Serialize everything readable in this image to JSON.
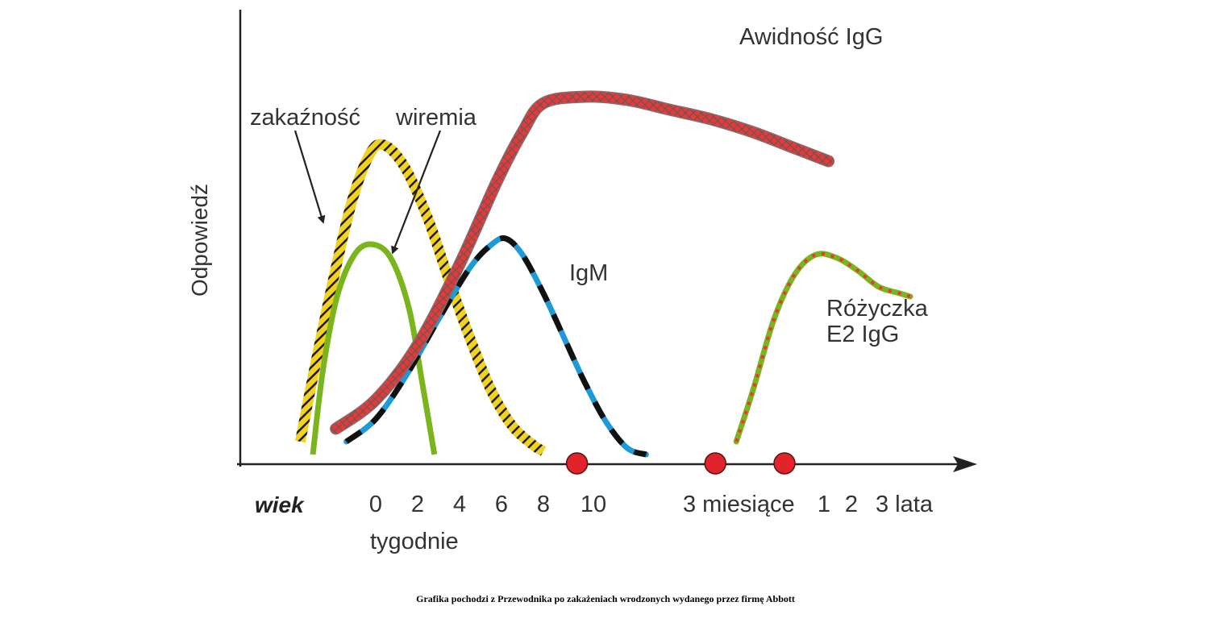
{
  "chart_data": {
    "type": "line",
    "title": "",
    "ylabel": "Odpowiedź",
    "x_axis": {
      "title": "wiek",
      "ticks": [
        "0",
        "2",
        "4",
        "6",
        "8",
        "10",
        "3 miesiące",
        "1",
        "2",
        "3 lata"
      ],
      "group_label": "tygodnie"
    },
    "markers": [
      {
        "x": 9.6
      },
      {
        "x": 16.2
      },
      {
        "x": 19.5
      }
    ],
    "series": [
      {
        "name": "zakaźność",
        "color": "#f2d21e",
        "stroke_color": "#222222",
        "pattern": "hatched",
        "annotation_arrow": true,
        "points": [
          [
            -3.6,
            0.07
          ],
          [
            -3.0,
            0.27
          ],
          [
            -2.2,
            0.52
          ],
          [
            -1.2,
            0.8
          ],
          [
            -0.3,
            0.96
          ],
          [
            0.4,
            0.99
          ],
          [
            1.4,
            0.92
          ],
          [
            2.5,
            0.76
          ],
          [
            3.5,
            0.57
          ],
          [
            4.5,
            0.39
          ],
          [
            5.5,
            0.23
          ],
          [
            6.5,
            0.12
          ],
          [
            7.5,
            0.06
          ],
          [
            8.0,
            0.04
          ]
        ]
      },
      {
        "name": "wiremia",
        "color": "#7ab51d",
        "pattern": "solid",
        "annotation_arrow": true,
        "points": [
          [
            -3.0,
            0.03
          ],
          [
            -2.5,
            0.3
          ],
          [
            -1.8,
            0.53
          ],
          [
            -0.9,
            0.66
          ],
          [
            0.0,
            0.68
          ],
          [
            0.8,
            0.63
          ],
          [
            1.6,
            0.48
          ],
          [
            2.2,
            0.26
          ],
          [
            2.8,
            0.03
          ]
        ]
      },
      {
        "name": "IgM",
        "color": "#1e9ad6",
        "stroke_color": "#111111",
        "pattern": "dashed",
        "points": [
          [
            -1.4,
            0.07
          ],
          [
            0.0,
            0.14
          ],
          [
            1.5,
            0.28
          ],
          [
            3.0,
            0.45
          ],
          [
            4.5,
            0.61
          ],
          [
            5.5,
            0.68
          ],
          [
            6.2,
            0.7
          ],
          [
            7.0,
            0.65
          ],
          [
            8.0,
            0.53
          ],
          [
            9.0,
            0.39
          ],
          [
            10.0,
            0.25
          ],
          [
            11.0,
            0.13
          ],
          [
            12.0,
            0.05
          ],
          [
            12.9,
            0.03
          ]
        ]
      },
      {
        "name": "Awidność IgG",
        "color": "#e63a3a",
        "stroke_color": "#555555",
        "pattern": "cross-hatched",
        "points": [
          [
            -1.9,
            0.11
          ],
          [
            0.0,
            0.2
          ],
          [
            2.0,
            0.37
          ],
          [
            4.0,
            0.62
          ],
          [
            5.8,
            0.88
          ],
          [
            7.0,
            1.03
          ],
          [
            8.0,
            1.12
          ],
          [
            10.0,
            1.14
          ],
          [
            12.0,
            1.13
          ],
          [
            14.0,
            1.1
          ],
          [
            16.0,
            1.07
          ],
          [
            18.0,
            1.03
          ],
          [
            20.0,
            0.98
          ],
          [
            21.6,
            0.94
          ]
        ]
      },
      {
        "name": "Różyczka E2 IgG",
        "color": "#7ab51d",
        "stroke_color": "#e63a3a",
        "pattern": "dotted",
        "points": [
          [
            17.2,
            0.07
          ],
          [
            18.0,
            0.23
          ],
          [
            19.0,
            0.45
          ],
          [
            20.0,
            0.59
          ],
          [
            21.0,
            0.65
          ],
          [
            22.0,
            0.64
          ],
          [
            23.0,
            0.6
          ],
          [
            24.0,
            0.55
          ],
          [
            25.0,
            0.53
          ],
          [
            25.5,
            0.52
          ]
        ]
      }
    ]
  },
  "labels": {
    "ylabel": "Odpowiedź",
    "wiek": "wiek",
    "tygodnie": "tygodnie",
    "zakaznosc": "zakaźność",
    "wiremia": "wiremia",
    "igm": "IgM",
    "awidnosc": "Awidność IgG",
    "rozyczka_line1": "Różyczka",
    "rozyczka_line2": "E2 IgG"
  },
  "caption": "Grafika pochodzi z Przewodnika po zakażeniach wrodzonych wydanego przez firmę Abbott"
}
